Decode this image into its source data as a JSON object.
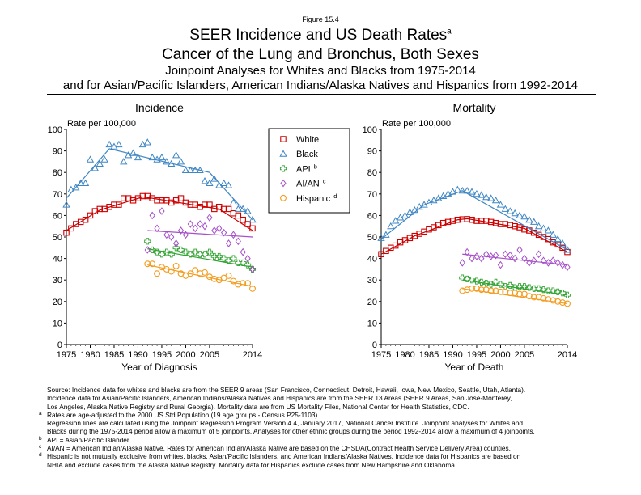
{
  "figure_label": "Figure 15.4",
  "title": {
    "line1": "SEER Incidence and US Death Rates",
    "line1_sup": "a",
    "line2": "Cancer of the Lung and Bronchus, Both Sexes",
    "line3": "Joinpoint Analyses for Whites and Blacks from 1975-2014",
    "line4": "and for Asian/Pacific Islanders, American Indians/Alaska Natives and Hispanics from 1992-2014"
  },
  "legend": {
    "placement": "between panels, top",
    "items": [
      {
        "label": "White",
        "sup": "",
        "color": "#cc0000",
        "marker": "square"
      },
      {
        "label": "Black",
        "sup": "",
        "color": "#3f86c4",
        "marker": "triangle"
      },
      {
        "label": "API",
        "sup": "b",
        "color": "#33a333",
        "marker": "plus"
      },
      {
        "label": "AI/AN",
        "sup": "c",
        "color": "#a64fc8",
        "marker": "diamond"
      },
      {
        "label": "Hispanic",
        "sup": "d",
        "color": "#f39c1e",
        "marker": "circle"
      }
    ]
  },
  "chart_data": [
    {
      "type": "scatter",
      "panel_title": "Incidence",
      "xlabel": "Year of Diagnosis",
      "ylabel": "Rate per 100,000",
      "xlim": [
        1975,
        2014
      ],
      "ylim": [
        0,
        100
      ],
      "xticks": [
        "1975",
        "1980",
        "1985",
        "1990",
        "1995",
        "2000",
        "2005",
        "2014"
      ],
      "yticks": [
        "0",
        "10",
        "20",
        "30",
        "40",
        "50",
        "60",
        "70",
        "80",
        "90",
        "100"
      ],
      "grid": false,
      "series": [
        {
          "name": "White",
          "color": "#cc0000",
          "marker": "square",
          "x": [
            1975,
            1976,
            1977,
            1978,
            1979,
            1980,
            1981,
            1982,
            1983,
            1984,
            1985,
            1986,
            1987,
            1988,
            1989,
            1990,
            1991,
            1992,
            1993,
            1994,
            1995,
            1996,
            1997,
            1998,
            1999,
            2000,
            2001,
            2002,
            2003,
            2004,
            2005,
            2006,
            2007,
            2008,
            2009,
            2010,
            2011,
            2012,
            2013,
            2014
          ],
          "y": [
            52,
            54,
            56,
            57,
            58,
            60,
            62,
            63,
            63,
            64,
            65,
            65,
            68,
            68,
            67,
            68,
            69,
            69,
            68,
            67,
            67,
            67,
            66,
            67,
            68,
            66,
            65,
            65,
            64,
            65,
            65,
            63,
            64,
            63,
            63,
            61,
            60,
            58,
            56,
            54
          ],
          "trend_x": [
            1975,
            1982,
            1991,
            1993,
            2007,
            2014
          ],
          "trend_y": [
            53,
            62.5,
            68.6,
            68,
            63,
            53
          ]
        },
        {
          "name": "Black",
          "color": "#3f86c4",
          "marker": "triangle",
          "x": [
            1975,
            1976,
            1977,
            1978,
            1979,
            1980,
            1981,
            1982,
            1983,
            1984,
            1985,
            1986,
            1987,
            1988,
            1989,
            1990,
            1991,
            1992,
            1993,
            1994,
            1995,
            1996,
            1997,
            1998,
            1999,
            2000,
            2001,
            2002,
            2003,
            2004,
            2005,
            2006,
            2007,
            2008,
            2009,
            2010,
            2011,
            2012,
            2013,
            2014
          ],
          "y": [
            65,
            72,
            73,
            75,
            75,
            86,
            82,
            84,
            86,
            93,
            92,
            93,
            85,
            88,
            89,
            87,
            93,
            94,
            87,
            86,
            87,
            85,
            84,
            88,
            85,
            81,
            81,
            81,
            81,
            76,
            75,
            77,
            74,
            75,
            74,
            66,
            63,
            63,
            62,
            58
          ],
          "trend_x": [
            1975,
            1984,
            2005,
            2014
          ],
          "trend_y": [
            68,
            91,
            80,
            58
          ]
        },
        {
          "name": "API",
          "color": "#33a333",
          "marker": "plus",
          "x": [
            1992,
            1993,
            1994,
            1995,
            1996,
            1997,
            1998,
            1999,
            2000,
            2001,
            2002,
            2003,
            2004,
            2005,
            2006,
            2007,
            2008,
            2009,
            2010,
            2011,
            2012,
            2013,
            2014
          ],
          "y": [
            48,
            44,
            43,
            42,
            43,
            42,
            45,
            44,
            43,
            42,
            43,
            42,
            42,
            43,
            41,
            41,
            40,
            39,
            40,
            38,
            38,
            37,
            35
          ],
          "trend_x": [
            1992,
            2014
          ],
          "trend_y": [
            44.5,
            36
          ]
        },
        {
          "name": "AI/AN",
          "color": "#a64fc8",
          "marker": "diamond",
          "x": [
            1992,
            1993,
            1994,
            1995,
            1996,
            1997,
            1998,
            1999,
            2000,
            2001,
            2002,
            2003,
            2004,
            2005,
            2006,
            2007,
            2008,
            2009,
            2010,
            2011,
            2012,
            2013,
            2014
          ],
          "y": [
            44,
            60,
            54,
            62,
            51,
            50,
            47,
            53,
            51,
            56,
            54,
            56,
            55,
            59,
            53,
            54,
            52,
            47,
            51,
            48,
            43,
            40,
            35
          ],
          "trend_x": [
            1992,
            2014
          ],
          "trend_y": [
            53,
            50
          ]
        },
        {
          "name": "Hispanic",
          "color": "#f39c1e",
          "marker": "circle",
          "x": [
            1992,
            1993,
            1994,
            1995,
            1996,
            1997,
            1998,
            1999,
            2000,
            2001,
            2002,
            2003,
            2004,
            2005,
            2006,
            2007,
            2008,
            2009,
            2010,
            2011,
            2012,
            2013,
            2014
          ],
          "y": [
            37.5,
            37.5,
            33,
            36,
            35,
            34,
            36.5,
            33,
            32,
            33,
            34.5,
            33,
            33.5,
            31.5,
            30.5,
            30,
            31,
            32,
            29.5,
            28,
            28.5,
            28.5,
            26
          ],
          "trend_x": [
            1992,
            2014
          ],
          "trend_y": [
            37,
            27
          ]
        }
      ]
    },
    {
      "type": "scatter",
      "panel_title": "Mortality",
      "xlabel": "Year of Death",
      "ylabel": "Rate per 100,000",
      "xlim": [
        1975,
        2014
      ],
      "ylim": [
        0,
        100
      ],
      "xticks": [
        "1975",
        "1980",
        "1985",
        "1990",
        "1995",
        "2000",
        "2005",
        "2014"
      ],
      "yticks": [
        "0",
        "10",
        "20",
        "30",
        "40",
        "50",
        "60",
        "70",
        "80",
        "90",
        "100"
      ],
      "grid": false,
      "series": [
        {
          "name": "White",
          "color": "#cc0000",
          "marker": "square",
          "x": [
            1975,
            1976,
            1977,
            1978,
            1979,
            1980,
            1981,
            1982,
            1983,
            1984,
            1985,
            1986,
            1987,
            1988,
            1989,
            1990,
            1991,
            1992,
            1993,
            1994,
            1995,
            1996,
            1997,
            1998,
            1999,
            2000,
            2001,
            2002,
            2003,
            2004,
            2005,
            2006,
            2007,
            2008,
            2009,
            2010,
            2011,
            2012,
            2013,
            2014
          ],
          "y": [
            42,
            43.5,
            45,
            46,
            47.5,
            48.5,
            49.5,
            50.5,
            51.5,
            52.5,
            53.5,
            54.5,
            55.5,
            56.5,
            57,
            57.5,
            58,
            58.2,
            58.3,
            58,
            57.5,
            57.5,
            57.5,
            57,
            56.5,
            56,
            56,
            55.5,
            55,
            54.5,
            53.5,
            53,
            52,
            51,
            50,
            49,
            47.5,
            46.5,
            45,
            43
          ],
          "trend_x": [
            1975,
            1982,
            1991,
            1993,
            2005,
            2014
          ],
          "trend_y": [
            42,
            50.5,
            58,
            58.5,
            54,
            43
          ]
        },
        {
          "name": "Black",
          "color": "#3f86c4",
          "marker": "triangle",
          "x": [
            1975,
            1976,
            1977,
            1978,
            1979,
            1980,
            1981,
            1982,
            1983,
            1984,
            1985,
            1986,
            1987,
            1988,
            1989,
            1990,
            1991,
            1992,
            1993,
            1994,
            1995,
            1996,
            1997,
            1998,
            1999,
            2000,
            2001,
            2002,
            2003,
            2004,
            2005,
            2006,
            2007,
            2008,
            2009,
            2010,
            2011,
            2012,
            2013,
            2014
          ],
          "y": [
            49.5,
            51,
            55,
            57.5,
            59,
            60,
            61.5,
            62.5,
            64,
            65,
            66,
            67,
            68,
            69,
            70,
            71,
            72,
            71.5,
            71.5,
            71,
            70,
            69.5,
            68.5,
            68,
            67,
            65,
            63,
            62,
            61,
            60,
            59.5,
            58,
            57,
            55,
            54,
            53,
            51,
            49,
            47,
            44
          ],
          "trend_x": [
            1975,
            1984,
            1992,
            2014
          ],
          "trend_y": [
            49,
            65,
            71.5,
            44
          ]
        },
        {
          "name": "API",
          "color": "#33a333",
          "marker": "plus",
          "x": [
            1992,
            1993,
            1994,
            1995,
            1996,
            1997,
            1998,
            1999,
            2000,
            2001,
            2002,
            2003,
            2004,
            2005,
            2006,
            2007,
            2008,
            2009,
            2010,
            2011,
            2012,
            2013,
            2014
          ],
          "y": [
            31,
            30.5,
            30,
            29.5,
            29,
            28.5,
            28,
            29,
            28,
            27,
            27.5,
            26.5,
            27,
            27,
            26.5,
            26,
            26,
            25.5,
            25,
            25,
            24.5,
            24,
            23
          ],
          "trend_x": [
            1992,
            2014
          ],
          "trend_y": [
            30,
            23
          ]
        },
        {
          "name": "AI/AN",
          "color": "#a64fc8",
          "marker": "diamond",
          "x": [
            1992,
            1993,
            1994,
            1995,
            1996,
            1997,
            1998,
            1999,
            2000,
            2001,
            2002,
            2003,
            2004,
            2005,
            2006,
            2007,
            2008,
            2009,
            2010,
            2011,
            2012,
            2013,
            2014
          ],
          "y": [
            38,
            43,
            40,
            41,
            40,
            42,
            41,
            41.5,
            37,
            42,
            41.5,
            40,
            44,
            40,
            38,
            39,
            42,
            39,
            38,
            39,
            38,
            37,
            36
          ],
          "trend_x": [
            1992,
            2014
          ],
          "trend_y": [
            42,
            37
          ]
        },
        {
          "name": "Hispanic",
          "color": "#f39c1e",
          "marker": "circle",
          "x": [
            1992,
            1993,
            1994,
            1995,
            1996,
            1997,
            1998,
            1999,
            2000,
            2001,
            2002,
            2003,
            2004,
            2005,
            2006,
            2007,
            2008,
            2009,
            2010,
            2011,
            2012,
            2013,
            2014
          ],
          "y": [
            25,
            25.5,
            26,
            26,
            25.5,
            25.5,
            25,
            25,
            24.5,
            24.5,
            24,
            24,
            23.5,
            23.5,
            22.5,
            22,
            22,
            21.5,
            21,
            20.5,
            20,
            19.5,
            19
          ],
          "trend_x": [
            1992,
            2014
          ],
          "trend_y": [
            26,
            19
          ]
        }
      ]
    }
  ],
  "notes": [
    {
      "mark": "",
      "text": "Source:  Incidence data for whites and blacks are from the SEER 9 areas (San Francisco, Connecticut, Detroit, Hawaii, Iowa, New Mexico, Seattle, Utah, Atlanta)."
    },
    {
      "mark": "",
      "text": "Incidence data for Asian/Pacific Islanders, American Indians/Alaska Natives and Hispanics are from the SEER 13 Areas (SEER 9 Areas, San Jose-Monterey,"
    },
    {
      "mark": "",
      "text": "Los Angeles, Alaska Native Registry and Rural Georgia).  Mortality data are from US Mortality Files, National Center for Health Statistics, CDC."
    },
    {
      "mark": "a",
      "text": "Rates are age-adjusted to the 2000 US Std Population (19 age groups - Census P25-1103)."
    },
    {
      "mark": "",
      "text": "Regression lines are calculated using the Joinpoint Regression Program Version 4.4, January 2017, National Cancer Institute.  Joinpoint analyses for Whites and"
    },
    {
      "mark": "",
      "text": "Blacks during the 1975-2014 period allow a maximum of 5 joinpoints.  Analyses for other ethnic groups during the period 1992-2014 allow a maximum of 4 joinpoints."
    },
    {
      "mark": "b",
      "text": "API = Asian/Pacific Islander."
    },
    {
      "mark": "c",
      "text": "AI/AN = American Indian/Alaska Native.  Rates for American Indian/Alaska Native are based on the CHSDA(Contract Health Service Delivery Area) counties."
    },
    {
      "mark": "d",
      "text": "Hispanic is not mutually exclusive from whites, blacks, Asian/Pacific Islanders, and American Indians/Alaska Natives.  Incidence data for Hispanics are based on"
    },
    {
      "mark": "",
      "text": "NHIA and exclude cases from the Alaska Native Registry.  Mortality data for Hispanics exclude cases from New Hampshire and Oklahoma."
    }
  ]
}
